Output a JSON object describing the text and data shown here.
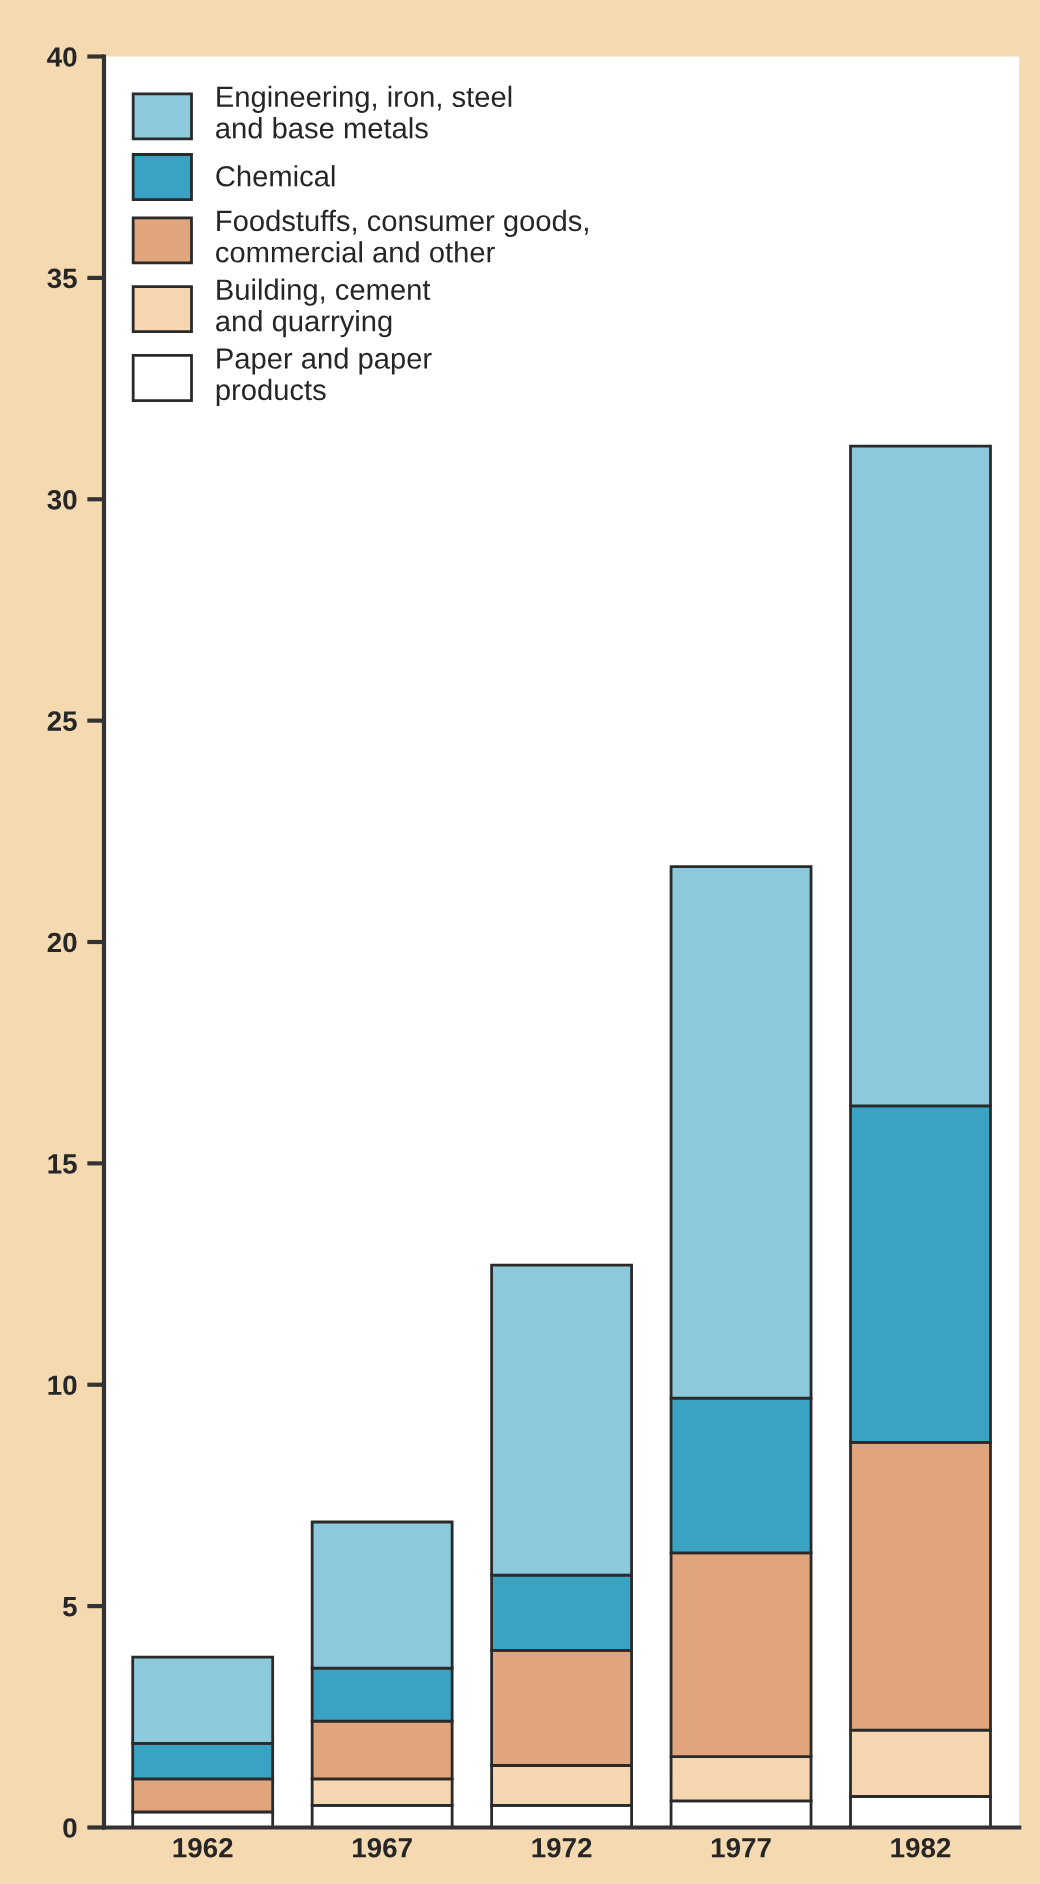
{
  "chart_data": {
    "type": "bar",
    "stacked": true,
    "categories": [
      "1962",
      "1967",
      "1972",
      "1977",
      "1982"
    ],
    "series": [
      {
        "name": "Paper and paper\nproducts",
        "color": "#ffffff",
        "values": [
          0.35,
          0.5,
          0.5,
          0.6,
          0.7
        ]
      },
      {
        "name": "Building, cement\nand quarrying",
        "color": "#f5d6b0",
        "values": [
          null,
          0.6,
          0.9,
          1.0,
          1.5
        ]
      },
      {
        "name": "Foodstuffs, consumer goods,\ncommercial and other",
        "color": "#e0a57c",
        "values": [
          0.75,
          1.3,
          2.6,
          4.6,
          6.5
        ]
      },
      {
        "name": "Chemical",
        "color": "#3aa3c4",
        "values": [
          0.8,
          1.2,
          1.7,
          3.5,
          7.6
        ]
      },
      {
        "name": "Engineering, iron, steel\nand base metals",
        "color": "#8cc9dc",
        "values": [
          1.95,
          3.3,
          7.0,
          12.0,
          14.9
        ]
      }
    ],
    "ylim": [
      0,
      40
    ],
    "yticks": [
      0,
      5,
      10,
      15,
      20,
      25,
      30,
      35,
      40
    ],
    "grid": false,
    "legend": "top left"
  }
}
